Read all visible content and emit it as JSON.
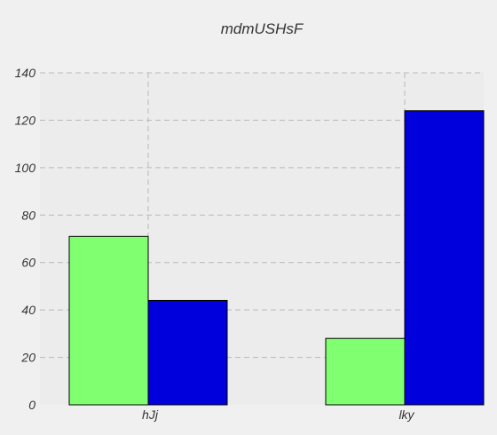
{
  "chart_data": {
    "type": "bar",
    "title": "mdmUSHsF",
    "xlabel": "",
    "ylabel": "",
    "categories": [
      "hJj",
      "lky"
    ],
    "series": [
      {
        "values": [
          71,
          28
        ],
        "color": "#80ff70"
      },
      {
        "values": [
          44,
          124
        ],
        "color": "#0000dd"
      }
    ],
    "ylim": [
      0,
      140
    ],
    "yticks": [
      0,
      20,
      40,
      60,
      80,
      100,
      120,
      140
    ],
    "grid": true,
    "legend": "none"
  },
  "colors": {
    "background": "#f0f0f0",
    "plot_background": "#ececec",
    "grid": "#b8b8b8"
  }
}
